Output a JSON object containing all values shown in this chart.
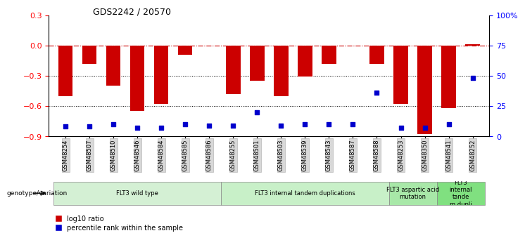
{
  "title": "GDS2242 / 20570",
  "samples": [
    "GSM48254",
    "GSM48507",
    "GSM48510",
    "GSM48546",
    "GSM48584",
    "GSM48585",
    "GSM48586",
    "GSM48255",
    "GSM48501",
    "GSM48503",
    "GSM48539",
    "GSM48543",
    "GSM48587",
    "GSM48588",
    "GSM48253",
    "GSM48350",
    "GSM48541",
    "GSM48252"
  ],
  "log10_ratio": [
    -0.5,
    -0.18,
    -0.4,
    -0.65,
    -0.58,
    -0.09,
    -0.005,
    -0.48,
    -0.35,
    -0.5,
    -0.31,
    -0.18,
    -0.005,
    -0.18,
    -0.58,
    -0.88,
    -0.62,
    0.015
  ],
  "percentile_rank": [
    8,
    8,
    10,
    7,
    7,
    10,
    9,
    9,
    20,
    9,
    10,
    10,
    10,
    36,
    7,
    7,
    10,
    48
  ],
  "groups": [
    {
      "label": "FLT3 wild type",
      "start": 0,
      "end": 7,
      "color": "#d4f0d4"
    },
    {
      "label": "FLT3 internal tandem duplications",
      "start": 7,
      "end": 14,
      "color": "#c8f0c8"
    },
    {
      "label": "FLT3 aspartic acid\nmutation",
      "start": 14,
      "end": 16,
      "color": "#a8e8a8"
    },
    {
      "label": "FLT3\ninternal\ntande\nm dupli",
      "start": 16,
      "end": 18,
      "color": "#80e080"
    }
  ],
  "ylim_left": [
    -0.9,
    0.3
  ],
  "ylim_right": [
    0,
    100
  ],
  "bar_color": "#cc0000",
  "dot_color": "#0000cc",
  "hline_color": "#cc0000",
  "dotline1": -0.3,
  "dotline2": -0.6,
  "right_ticks": [
    0,
    25,
    50,
    75,
    100
  ],
  "right_tick_labels": [
    "0",
    "25",
    "50",
    "75",
    "100%"
  ]
}
